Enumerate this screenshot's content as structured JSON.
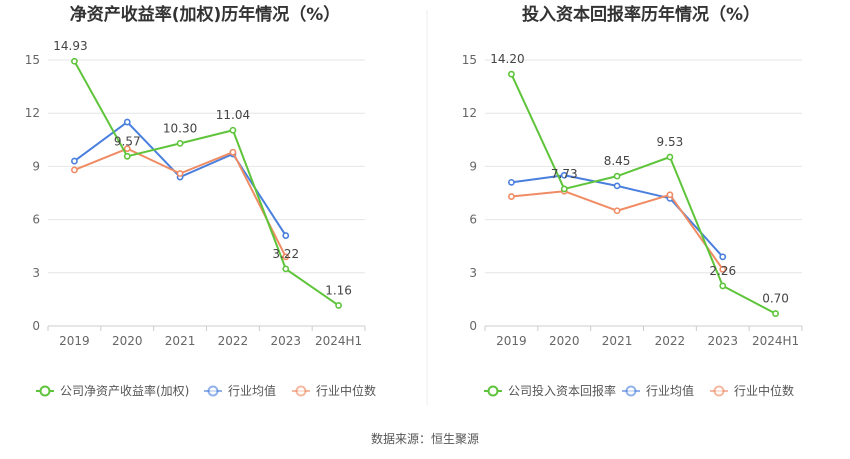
{
  "colors": {
    "company": "#5ec43a",
    "industry_avg": "#4a7fdd",
    "industry_median": "#f08c64",
    "grid": "#e6e6e6",
    "axis": "#cccccc"
  },
  "legend_labels": {
    "industry_avg": "行业均值",
    "industry_median": "行业中位数"
  },
  "source_text": "数据来源：恒生聚源",
  "chart_data": [
    {
      "type": "line",
      "title": "净资产收益率(加权)历年情况（%）",
      "categories": [
        "2019",
        "2020",
        "2021",
        "2022",
        "2023",
        "2024H1"
      ],
      "ylim": [
        0,
        15
      ],
      "yticks": [
        0,
        3,
        6,
        9,
        12,
        15
      ],
      "grid": true,
      "legend_position": "bottom",
      "series": [
        {
          "key": "company",
          "name": "公司净资产收益率(加权)",
          "values": [
            14.93,
            9.57,
            10.3,
            11.04,
            3.22,
            1.16
          ],
          "labels": [
            "14.93",
            "9.57",
            "10.30",
            "11.04",
            "3.22",
            "1.16"
          ]
        },
        {
          "key": "industry_avg",
          "name": "行业均值",
          "values": [
            9.3,
            11.5,
            8.4,
            9.7,
            5.1,
            null
          ]
        },
        {
          "key": "industry_median",
          "name": "行业中位数",
          "values": [
            8.8,
            10.0,
            8.6,
            9.8,
            3.9,
            null
          ]
        }
      ]
    },
    {
      "type": "line",
      "title": "投入资本回报率历年情况（%）",
      "categories": [
        "2019",
        "2020",
        "2021",
        "2022",
        "2023",
        "2024H1"
      ],
      "ylim": [
        0,
        15
      ],
      "yticks": [
        0,
        3,
        6,
        9,
        12,
        15
      ],
      "grid": true,
      "legend_position": "bottom",
      "series": [
        {
          "key": "company",
          "name": "公司投入资本回报率",
          "values": [
            14.2,
            7.73,
            8.45,
            9.53,
            2.26,
            0.7
          ],
          "labels": [
            "14.20",
            "7.73",
            "8.45",
            "9.53",
            "2.26",
            "0.70"
          ]
        },
        {
          "key": "industry_avg",
          "name": "行业均值",
          "values": [
            8.1,
            8.5,
            7.9,
            7.2,
            3.9,
            null
          ]
        },
        {
          "key": "industry_median",
          "name": "行业中位数",
          "values": [
            7.3,
            7.6,
            6.5,
            7.4,
            3.2,
            null
          ]
        }
      ]
    }
  ]
}
